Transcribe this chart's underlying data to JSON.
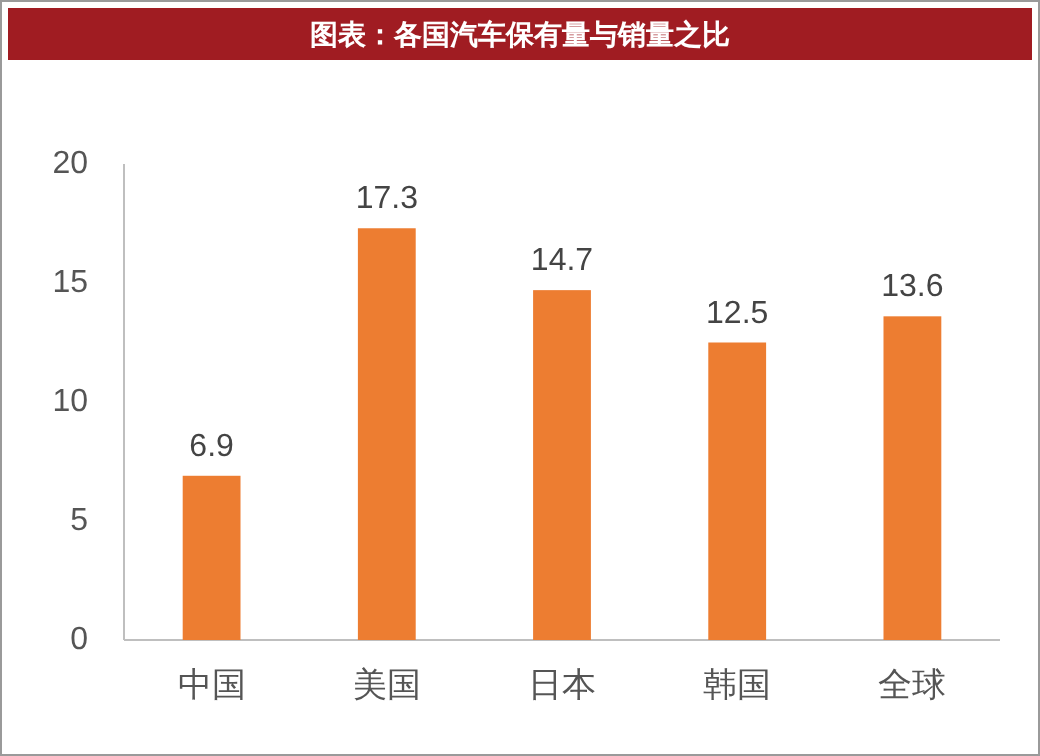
{
  "chart_data": {
    "type": "bar",
    "title": "图表：各国汽车保有量与销量之比",
    "categories": [
      "中国",
      "美国",
      "日本",
      "韩国",
      "全球"
    ],
    "values": [
      6.9,
      17.3,
      14.7,
      12.5,
      13.6
    ],
    "color": "#ed7d31",
    "ylim": [
      0,
      20
    ],
    "yticks": [
      0,
      5,
      10,
      15,
      20
    ],
    "data_labels": true
  }
}
